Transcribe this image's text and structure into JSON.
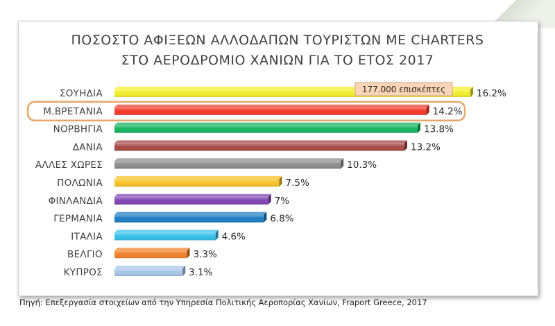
{
  "chart_data": {
    "type": "bar",
    "orientation": "horizontal",
    "title_lines": [
      "ΠΟΣΟΣΤΟ ΑΦΙΞΕΩΝ ΑΛΛΟΔΑΠΩΝ ΤΟΥΡΙΣΤΩΝ ΜΕ CHARTERS",
      "ΣΤΟ ΑΕΡΟΔΡΟΜΙΟ ΧΑΝΙΩΝ ΓΙΑ ΤΟ ΕΤΟΣ 2017"
    ],
    "xlabel": "",
    "ylabel": "",
    "unit": "%",
    "xlim": [
      0,
      16.2
    ],
    "grid": false,
    "categories": [
      "ΣΟΥΗΔΙΑ",
      "Μ.ΒΡΕΤΑΝΙΑ",
      "ΝΟΡΒΗΓΙΑ",
      "ΔΑΝΙΑ",
      "ΑΛΛΕΣ ΧΩΡΕΣ",
      "ΠΟΛΩΝΙΑ",
      "ΦΙΝΛΑΝΔΙΑ",
      "ΓΕΡΜΑΝΙΑ",
      "ΙΤΑΛΙΑ",
      "ΒΕΛΓΙΟ",
      "ΚΥΠΡΟΣ"
    ],
    "values": [
      16.2,
      14.2,
      13.8,
      13.2,
      10.3,
      7.5,
      7,
      6.8,
      4.6,
      3.3,
      3.1
    ],
    "value_labels": [
      "16.2%",
      "14.2%",
      "13.8%",
      "13.2%",
      "10.3%",
      "7.5%",
      "7%",
      "6.8%",
      "4.6%",
      "3.3%",
      "3.1%"
    ],
    "colors": [
      "#f3ef2c",
      "#f23a2a",
      "#17b45f",
      "#a84a48",
      "#8c8c8c",
      "#f7c326",
      "#8146b4",
      "#1d7dc2",
      "#35c0ea",
      "#f0832a",
      "#a8c6e8"
    ],
    "annotations": [
      {
        "category": "ΣΟΥΗΔΙΑ",
        "text": "177.000 επισκέπτες",
        "fill": "#fbd5b5",
        "border": "#c5a58a"
      },
      {
        "category": "Μ.ΒΡΕΤΑΝΙΑ",
        "highlight": "rounded-outline",
        "color": "#e8a66a"
      }
    ]
  },
  "source_note": "Πηγή: Επεξεργασία στοιχείων από την Υπηρεσία Πολιτικής Αεροπορίας Χανίων, Fraport Greece, 2017"
}
